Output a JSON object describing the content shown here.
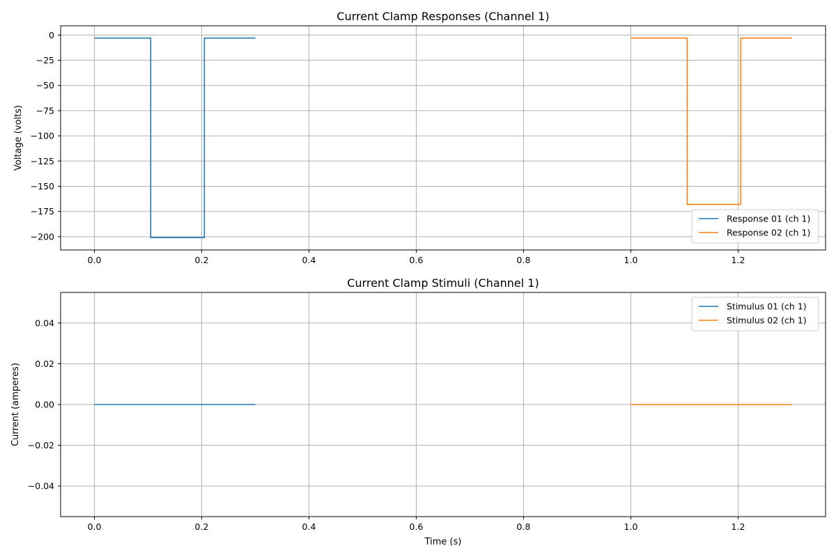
{
  "chart_data": [
    {
      "type": "line",
      "title": "Current Clamp Responses (Channel 1)",
      "xlabel": "",
      "ylabel": "Voltage (volts)",
      "xlim": [
        -0.063,
        1.363
      ],
      "ylim": [
        -213.2,
        9.2
      ],
      "xticks": [
        0.0,
        0.2,
        0.4,
        0.6,
        0.8,
        1.0,
        1.2
      ],
      "xtick_labels": [
        "0.0",
        "0.2",
        "0.4",
        "0.6",
        "0.8",
        "1.0",
        "1.2"
      ],
      "yticks": [
        0,
        -25,
        -50,
        -75,
        -100,
        -125,
        -150,
        -175,
        -200
      ],
      "ytick_labels": [
        "0",
        "−25",
        "−50",
        "−75",
        "−100",
        "−125",
        "−150",
        "−175",
        "−200"
      ],
      "grid": true,
      "legend": "lower right",
      "series": [
        {
          "name": "Response 01 (ch 1)",
          "color": "#1f77b4",
          "points": [
            [
              0.0,
              -3
            ],
            [
              0.105,
              -3
            ],
            [
              0.105,
              -201
            ],
            [
              0.205,
              -201
            ],
            [
              0.205,
              -3
            ],
            [
              0.3,
              -3
            ]
          ]
        },
        {
          "name": "Response 02 (ch 1)",
          "color": "#ff7f0e",
          "points": [
            [
              1.0,
              -3
            ],
            [
              1.105,
              -3
            ],
            [
              1.105,
              -168
            ],
            [
              1.205,
              -168
            ],
            [
              1.205,
              -3
            ],
            [
              1.3,
              -3
            ]
          ]
        }
      ]
    },
    {
      "type": "line",
      "title": "Current Clamp Stimuli (Channel 1)",
      "xlabel": "Time (s)",
      "ylabel": "Current (amperes)",
      "xlim": [
        -0.063,
        1.363
      ],
      "ylim": [
        -0.055,
        0.055
      ],
      "xticks": [
        0.0,
        0.2,
        0.4,
        0.6,
        0.8,
        1.0,
        1.2
      ],
      "xtick_labels": [
        "0.0",
        "0.2",
        "0.4",
        "0.6",
        "0.8",
        "1.0",
        "1.2"
      ],
      "yticks": [
        0.04,
        0.02,
        0.0,
        -0.02,
        -0.04
      ],
      "ytick_labels": [
        "0.04",
        "0.02",
        "0.00",
        "−0.02",
        "−0.04"
      ],
      "grid": true,
      "legend": "upper right",
      "series": [
        {
          "name": "Stimulus 01 (ch 1)",
          "color": "#1f77b4",
          "points": [
            [
              0.0,
              0.0
            ],
            [
              0.3,
              0.0
            ]
          ]
        },
        {
          "name": "Stimulus 02 (ch 1)",
          "color": "#ff7f0e",
          "points": [
            [
              1.0,
              0.0
            ],
            [
              1.3,
              0.0
            ]
          ]
        }
      ]
    }
  ]
}
